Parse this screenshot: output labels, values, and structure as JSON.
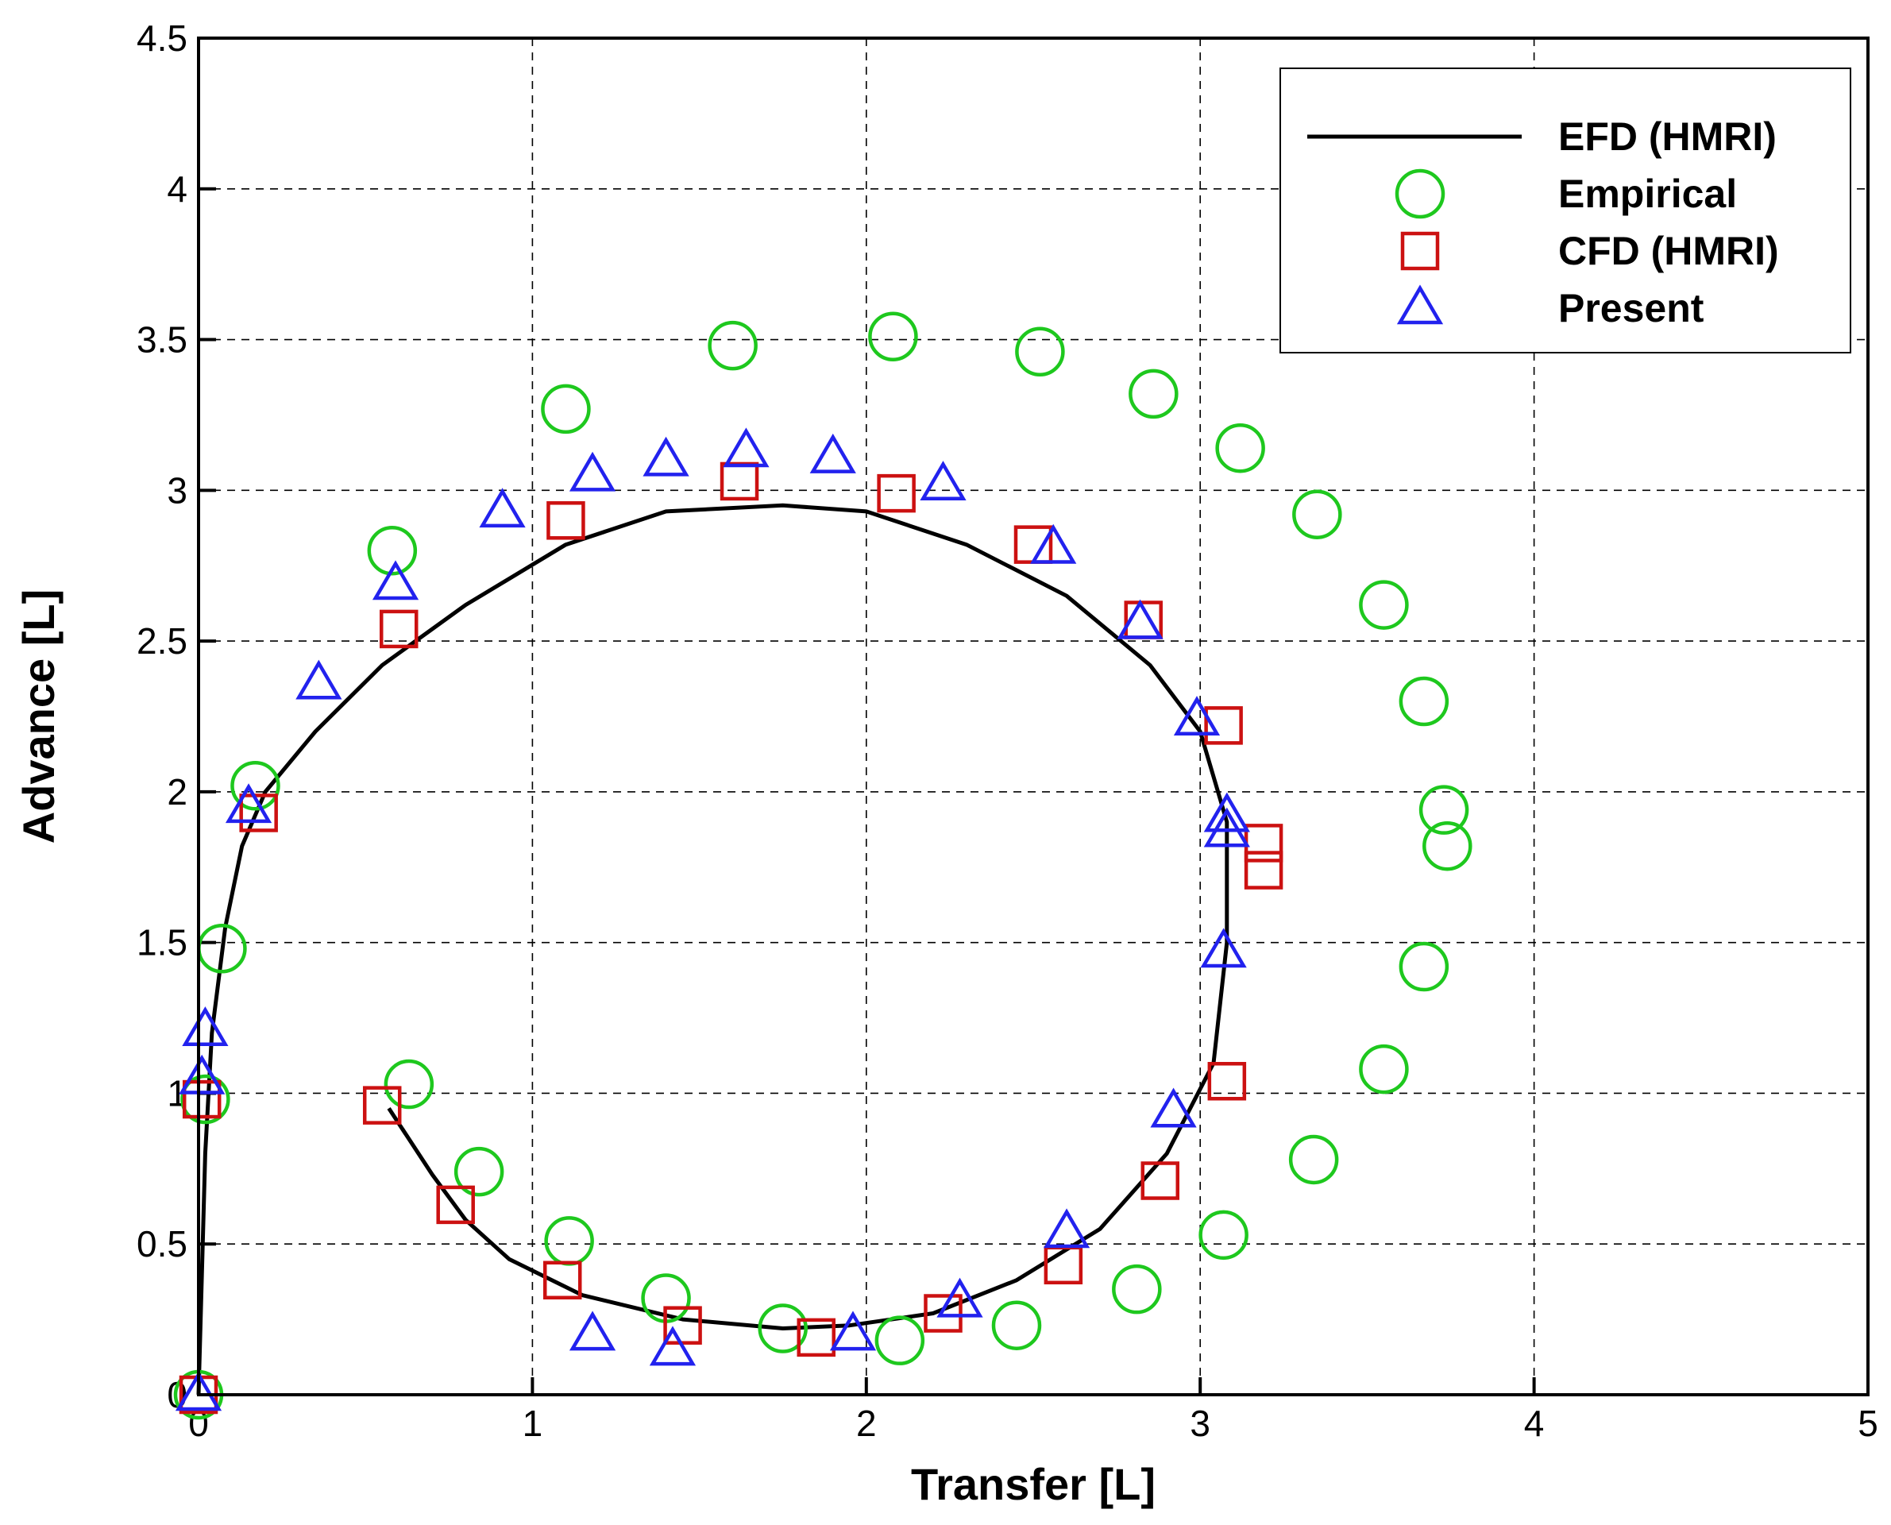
{
  "chart_data": {
    "type": "scatter",
    "xlabel": "Transfer [L]",
    "ylabel": "Advance [L]",
    "xlim": [
      0,
      5
    ],
    "ylim": [
      0,
      4.5
    ],
    "xticks": [
      0,
      1,
      2,
      3,
      4,
      5
    ],
    "yticks": [
      0,
      0.5,
      1,
      1.5,
      2,
      2.5,
      3,
      3.5,
      4,
      4.5
    ],
    "xtick_labels": [
      "0",
      "1",
      "2",
      "3",
      "4",
      "5"
    ],
    "ytick_labels": [
      "0",
      "0.5",
      "1",
      "1.5",
      "2",
      "2.5",
      "3",
      "3.5",
      "4",
      "4.5"
    ],
    "grid": true,
    "legend_position": "top-right",
    "series": [
      {
        "name": "EFD (HMRI)",
        "style": "line",
        "color": "#000000",
        "points": [
          [
            0,
            0
          ],
          [
            0.01,
            0.4
          ],
          [
            0.02,
            0.8
          ],
          [
            0.04,
            1.2
          ],
          [
            0.08,
            1.55
          ],
          [
            0.13,
            1.82
          ],
          [
            0.2,
            2.0
          ],
          [
            0.35,
            2.2
          ],
          [
            0.55,
            2.42
          ],
          [
            0.8,
            2.62
          ],
          [
            1.1,
            2.82
          ],
          [
            1.4,
            2.93
          ],
          [
            1.75,
            2.95
          ],
          [
            2.0,
            2.93
          ],
          [
            2.3,
            2.82
          ],
          [
            2.6,
            2.65
          ],
          [
            2.85,
            2.42
          ],
          [
            3.0,
            2.2
          ],
          [
            3.08,
            1.9
          ],
          [
            3.08,
            1.5
          ],
          [
            3.04,
            1.1
          ],
          [
            2.9,
            0.8
          ],
          [
            2.7,
            0.55
          ],
          [
            2.45,
            0.38
          ],
          [
            2.2,
            0.27
          ],
          [
            1.95,
            0.23
          ],
          [
            1.75,
            0.22
          ],
          [
            1.45,
            0.25
          ],
          [
            1.15,
            0.33
          ],
          [
            0.93,
            0.45
          ],
          [
            0.8,
            0.58
          ],
          [
            0.7,
            0.73
          ],
          [
            0.57,
            0.95
          ]
        ]
      },
      {
        "name": "Empirical",
        "style": "circle",
        "color": "#1ec81e",
        "points": [
          [
            0,
            0
          ],
          [
            0.02,
            0.98
          ],
          [
            0.07,
            1.48
          ],
          [
            0.17,
            2.02
          ],
          [
            0.58,
            2.8
          ],
          [
            1.1,
            3.27
          ],
          [
            1.6,
            3.48
          ],
          [
            2.08,
            3.51
          ],
          [
            2.52,
            3.46
          ],
          [
            2.86,
            3.32
          ],
          [
            3.12,
            3.14
          ],
          [
            3.35,
            2.92
          ],
          [
            3.55,
            2.62
          ],
          [
            3.67,
            2.3
          ],
          [
            3.73,
            1.94
          ],
          [
            3.74,
            1.82
          ],
          [
            3.67,
            1.42
          ],
          [
            3.55,
            1.08
          ],
          [
            3.34,
            0.78
          ],
          [
            3.07,
            0.53
          ],
          [
            2.81,
            0.35
          ],
          [
            2.45,
            0.23
          ],
          [
            2.1,
            0.18
          ],
          [
            1.75,
            0.22
          ],
          [
            1.4,
            0.32
          ],
          [
            1.11,
            0.51
          ],
          [
            0.84,
            0.74
          ],
          [
            0.63,
            1.03
          ]
        ]
      },
      {
        "name": "CFD (HMRI)",
        "style": "square",
        "color": "#cc1111",
        "points": [
          [
            0,
            0
          ],
          [
            0.01,
            0.98
          ],
          [
            0.18,
            1.93
          ],
          [
            0.6,
            2.54
          ],
          [
            1.1,
            2.9
          ],
          [
            1.62,
            3.03
          ],
          [
            2.09,
            2.99
          ],
          [
            2.5,
            2.82
          ],
          [
            2.83,
            2.57
          ],
          [
            3.07,
            2.22
          ],
          [
            3.19,
            1.83
          ],
          [
            3.19,
            1.74
          ],
          [
            3.08,
            1.04
          ],
          [
            2.88,
            0.71
          ],
          [
            2.59,
            0.43
          ],
          [
            2.23,
            0.27
          ],
          [
            1.85,
            0.19
          ],
          [
            1.45,
            0.23
          ],
          [
            1.09,
            0.38
          ],
          [
            0.77,
            0.63
          ],
          [
            0.55,
            0.96
          ]
        ]
      },
      {
        "name": "Present",
        "style": "triangle",
        "color": "#2222ee",
        "points": [
          [
            0,
            0
          ],
          [
            0.01,
            1.05
          ],
          [
            0.02,
            1.21
          ],
          [
            0.15,
            1.95
          ],
          [
            0.36,
            2.36
          ],
          [
            0.59,
            2.69
          ],
          [
            0.91,
            2.93
          ],
          [
            1.18,
            3.05
          ],
          [
            1.4,
            3.1
          ],
          [
            1.64,
            3.13
          ],
          [
            1.9,
            3.11
          ],
          [
            2.23,
            3.02
          ],
          [
            2.56,
            2.81
          ],
          [
            2.82,
            2.56
          ],
          [
            2.99,
            2.24
          ],
          [
            3.08,
            1.92
          ],
          [
            3.08,
            1.87
          ],
          [
            3.07,
            1.47
          ],
          [
            2.92,
            0.94
          ],
          [
            2.6,
            0.54
          ],
          [
            2.28,
            0.31
          ],
          [
            1.96,
            0.2
          ],
          [
            1.42,
            0.15
          ],
          [
            1.18,
            0.2
          ]
        ]
      }
    ]
  }
}
